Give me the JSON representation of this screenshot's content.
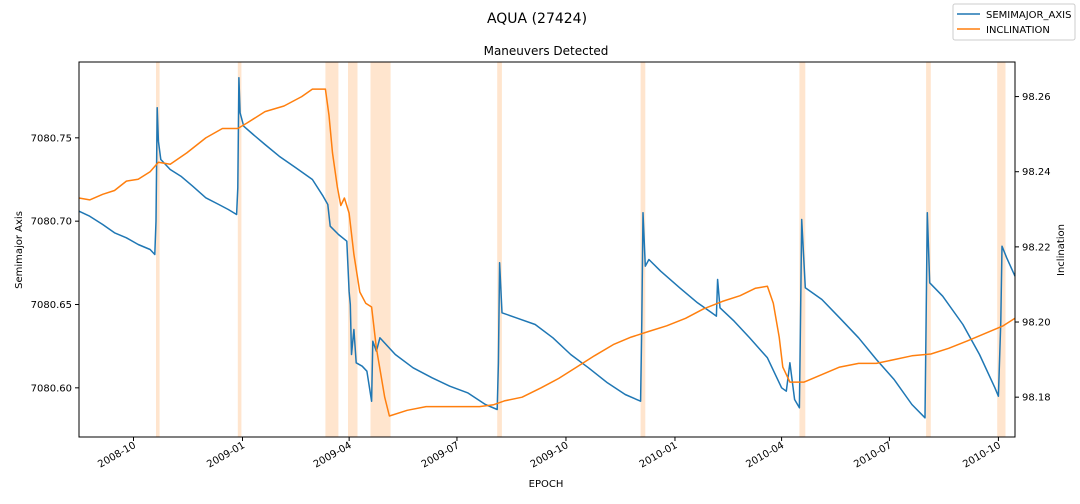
{
  "figure": {
    "suptitle": "AQUA (27424)",
    "title": "Maneuvers Detected"
  },
  "chart_data": {
    "type": "line",
    "title": "Maneuvers Detected",
    "xlabel": "EPOCH",
    "ylabel_left": "Semimajor Axis",
    "ylabel_right": "Inclination",
    "xlim": [
      "2008-08-16",
      "2010-10-15"
    ],
    "ylim_left": [
      7080.5705,
      7080.7955
    ],
    "ylim_right": [
      98.1694,
      98.2692
    ],
    "x_ticks": [
      {
        "date": "2008-10-01",
        "label": "2008-10"
      },
      {
        "date": "2009-01-01",
        "label": "2009-01"
      },
      {
        "date": "2009-04-01",
        "label": "2009-04"
      },
      {
        "date": "2009-07-01",
        "label": "2009-07"
      },
      {
        "date": "2009-10-01",
        "label": "2009-10"
      },
      {
        "date": "2010-01-01",
        "label": "2010-01"
      },
      {
        "date": "2010-04-01",
        "label": "2010-04"
      },
      {
        "date": "2010-07-01",
        "label": "2010-07"
      },
      {
        "date": "2010-10-01",
        "label": "2010-10"
      }
    ],
    "y_left_ticks": [
      7080.6,
      7080.65,
      7080.7,
      7080.75
    ],
    "y_left_tick_labels": [
      "7080.60",
      "7080.65",
      "7080.70",
      "7080.75"
    ],
    "y_right_ticks": [
      98.18,
      98.2,
      98.22,
      98.24,
      98.26
    ],
    "y_right_tick_labels": [
      "98.18",
      "98.20",
      "98.22",
      "98.24",
      "98.26"
    ],
    "legend_position": "top-right",
    "grid": false,
    "maneuver_windows": [
      [
        "2008-10-20",
        "2008-10-23"
      ],
      [
        "2008-12-28",
        "2008-12-31"
      ],
      [
        "2009-03-12",
        "2009-03-23"
      ],
      [
        "2009-03-31",
        "2009-04-08"
      ],
      [
        "2009-04-19",
        "2009-05-06"
      ],
      [
        "2009-08-04",
        "2009-08-08"
      ],
      [
        "2009-12-03",
        "2009-12-07"
      ],
      [
        "2010-04-16",
        "2010-04-21"
      ],
      [
        "2010-08-01",
        "2010-08-05"
      ],
      [
        "2010-09-30",
        "2010-10-07"
      ]
    ],
    "series": [
      {
        "name": "SEMIMAJOR_AXIS",
        "color": "#1f77b4",
        "axis": "left",
        "points": [
          [
            "2008-08-16",
            7080.706
          ],
          [
            "2008-08-25",
            7080.703
          ],
          [
            "2008-09-05",
            7080.698
          ],
          [
            "2008-09-15",
            7080.693
          ],
          [
            "2008-09-25",
            7080.69
          ],
          [
            "2008-10-05",
            7080.686
          ],
          [
            "2008-10-15",
            7080.683
          ],
          [
            "2008-10-19",
            7080.68
          ],
          [
            "2008-10-20",
            7080.7
          ],
          [
            "2008-10-21",
            7080.768
          ],
          [
            "2008-10-22",
            7080.748
          ],
          [
            "2008-10-24",
            7080.737
          ],
          [
            "2008-11-01",
            7080.731
          ],
          [
            "2008-11-10",
            7080.727
          ],
          [
            "2008-11-20",
            7080.721
          ],
          [
            "2008-12-01",
            7080.714
          ],
          [
            "2008-12-12",
            7080.71
          ],
          [
            "2008-12-20",
            7080.707
          ],
          [
            "2008-12-27",
            7080.704
          ],
          [
            "2008-12-28",
            7080.72
          ],
          [
            "2008-12-29",
            7080.786
          ],
          [
            "2008-12-30",
            7080.765
          ],
          [
            "2009-01-02",
            7080.757
          ],
          [
            "2009-01-10",
            7080.752
          ],
          [
            "2009-01-20",
            7080.746
          ],
          [
            "2009-02-01",
            7080.739
          ],
          [
            "2009-02-15",
            7080.732
          ],
          [
            "2009-03-01",
            7080.725
          ],
          [
            "2009-03-10",
            7080.715
          ],
          [
            "2009-03-14",
            7080.71
          ],
          [
            "2009-03-16",
            7080.697
          ],
          [
            "2009-03-23",
            7080.692
          ],
          [
            "2009-03-30",
            7080.688
          ],
          [
            "2009-04-01",
            7080.658
          ],
          [
            "2009-04-02",
            7080.65
          ],
          [
            "2009-04-03",
            7080.62
          ],
          [
            "2009-04-05",
            7080.635
          ],
          [
            "2009-04-07",
            7080.615
          ],
          [
            "2009-04-12",
            7080.613
          ],
          [
            "2009-04-16",
            7080.61
          ],
          [
            "2009-04-20",
            7080.592
          ],
          [
            "2009-04-21",
            7080.628
          ],
          [
            "2009-04-24",
            7080.622
          ],
          [
            "2009-04-27",
            7080.63
          ],
          [
            "2009-05-10",
            7080.62
          ],
          [
            "2009-05-25",
            7080.612
          ],
          [
            "2009-06-10",
            7080.606
          ],
          [
            "2009-06-25",
            7080.601
          ],
          [
            "2009-07-10",
            7080.597
          ],
          [
            "2009-07-25",
            7080.59
          ],
          [
            "2009-08-04",
            7080.587
          ],
          [
            "2009-08-05",
            7080.615
          ],
          [
            "2009-08-06",
            7080.675
          ],
          [
            "2009-08-08",
            7080.645
          ],
          [
            "2009-08-20",
            7080.642
          ],
          [
            "2009-09-05",
            7080.638
          ],
          [
            "2009-09-20",
            7080.63
          ],
          [
            "2009-10-05",
            7080.62
          ],
          [
            "2009-10-20",
            7080.612
          ],
          [
            "2009-11-05",
            7080.603
          ],
          [
            "2009-11-20",
            7080.596
          ],
          [
            "2009-12-03",
            7080.592
          ],
          [
            "2009-12-04",
            7080.64
          ],
          [
            "2009-12-05",
            7080.705
          ],
          [
            "2009-12-07",
            7080.673
          ],
          [
            "2009-12-10",
            7080.677
          ],
          [
            "2009-12-20",
            7080.67
          ],
          [
            "2010-01-05",
            7080.66
          ],
          [
            "2010-01-20",
            7080.651
          ],
          [
            "2010-02-01",
            7080.645
          ],
          [
            "2010-02-05",
            7080.643
          ],
          [
            "2010-02-06",
            7080.665
          ],
          [
            "2010-02-08",
            7080.648
          ],
          [
            "2010-02-20",
            7080.64
          ],
          [
            "2010-03-05",
            7080.63
          ],
          [
            "2010-03-20",
            7080.618
          ],
          [
            "2010-04-01",
            7080.6
          ],
          [
            "2010-04-05",
            7080.598
          ],
          [
            "2010-04-08",
            7080.615
          ],
          [
            "2010-04-12",
            7080.593
          ],
          [
            "2010-04-16",
            7080.588
          ],
          [
            "2010-04-17",
            7080.64
          ],
          [
            "2010-04-18",
            7080.701
          ],
          [
            "2010-04-21",
            7080.66
          ],
          [
            "2010-05-05",
            7080.653
          ],
          [
            "2010-05-20",
            7080.642
          ],
          [
            "2010-06-05",
            7080.63
          ],
          [
            "2010-06-20",
            7080.617
          ],
          [
            "2010-07-05",
            7080.605
          ],
          [
            "2010-07-20",
            7080.59
          ],
          [
            "2010-07-31",
            7080.582
          ],
          [
            "2010-08-01",
            7080.64
          ],
          [
            "2010-08-02",
            7080.705
          ],
          [
            "2010-08-04",
            7080.663
          ],
          [
            "2010-08-15",
            7080.655
          ],
          [
            "2010-09-01",
            7080.638
          ],
          [
            "2010-09-15",
            7080.62
          ],
          [
            "2010-09-28",
            7080.6
          ],
          [
            "2010-10-01",
            7080.595
          ],
          [
            "2010-10-03",
            7080.64
          ],
          [
            "2010-10-04",
            7080.685
          ],
          [
            "2010-10-08",
            7080.678
          ],
          [
            "2010-10-15",
            7080.667
          ]
        ]
      },
      {
        "name": "INCLINATION",
        "color": "#ff7f0e",
        "axis": "right",
        "points": [
          [
            "2008-08-16",
            98.233
          ],
          [
            "2008-08-25",
            98.2325
          ],
          [
            "2008-09-05",
            98.234
          ],
          [
            "2008-09-15",
            98.235
          ],
          [
            "2008-09-25",
            98.2375
          ],
          [
            "2008-10-05",
            98.238
          ],
          [
            "2008-10-15",
            98.24
          ],
          [
            "2008-10-22",
            98.2425
          ],
          [
            "2008-11-01",
            98.242
          ],
          [
            "2008-11-15",
            98.245
          ],
          [
            "2008-12-01",
            98.249
          ],
          [
            "2008-12-15",
            98.2515
          ],
          [
            "2008-12-28",
            98.2515
          ],
          [
            "2009-01-05",
            98.253
          ],
          [
            "2009-01-20",
            98.256
          ],
          [
            "2009-02-05",
            98.2575
          ],
          [
            "2009-02-20",
            98.26
          ],
          [
            "2009-03-01",
            98.262
          ],
          [
            "2009-03-05",
            98.262
          ],
          [
            "2009-03-12",
            98.262
          ],
          [
            "2009-03-15",
            98.255
          ],
          [
            "2009-03-18",
            98.245
          ],
          [
            "2009-03-22",
            98.236
          ],
          [
            "2009-03-25",
            98.231
          ],
          [
            "2009-03-28",
            98.233
          ],
          [
            "2009-04-01",
            98.229
          ],
          [
            "2009-04-05",
            98.218
          ],
          [
            "2009-04-10",
            98.208
          ],
          [
            "2009-04-15",
            98.205
          ],
          [
            "2009-04-20",
            98.204
          ],
          [
            "2009-04-24",
            98.193
          ],
          [
            "2009-05-01",
            98.18
          ],
          [
            "2009-05-05",
            98.175
          ],
          [
            "2009-05-20",
            98.1765
          ],
          [
            "2009-06-05",
            98.1775
          ],
          [
            "2009-06-20",
            98.1775
          ],
          [
            "2009-07-05",
            98.1775
          ],
          [
            "2009-07-20",
            98.1775
          ],
          [
            "2009-08-01",
            98.178
          ],
          [
            "2009-08-10",
            98.179
          ],
          [
            "2009-08-25",
            98.18
          ],
          [
            "2009-09-10",
            98.1825
          ],
          [
            "2009-09-25",
            98.185
          ],
          [
            "2009-10-10",
            98.188
          ],
          [
            "2009-10-25",
            98.191
          ],
          [
            "2009-11-10",
            98.194
          ],
          [
            "2009-11-25",
            98.196
          ],
          [
            "2009-12-10",
            98.1975
          ],
          [
            "2009-12-25",
            98.199
          ],
          [
            "2010-01-10",
            98.201
          ],
          [
            "2010-01-25",
            98.2035
          ],
          [
            "2010-02-10",
            98.2055
          ],
          [
            "2010-02-25",
            98.207
          ],
          [
            "2010-03-10",
            98.209
          ],
          [
            "2010-03-20",
            98.2095
          ],
          [
            "2010-03-25",
            98.205
          ],
          [
            "2010-03-30",
            98.196
          ],
          [
            "2010-04-02",
            98.188
          ],
          [
            "2010-04-08",
            98.184
          ],
          [
            "2010-04-20",
            98.184
          ],
          [
            "2010-05-05",
            98.186
          ],
          [
            "2010-05-20",
            98.188
          ],
          [
            "2010-06-05",
            98.189
          ],
          [
            "2010-06-20",
            98.189
          ],
          [
            "2010-07-05",
            98.19
          ],
          [
            "2010-07-20",
            98.191
          ],
          [
            "2010-08-05",
            98.1915
          ],
          [
            "2010-08-20",
            98.193
          ],
          [
            "2010-09-05",
            98.195
          ],
          [
            "2010-09-20",
            98.197
          ],
          [
            "2010-10-05",
            98.199
          ],
          [
            "2010-10-15",
            98.201
          ]
        ]
      }
    ]
  }
}
